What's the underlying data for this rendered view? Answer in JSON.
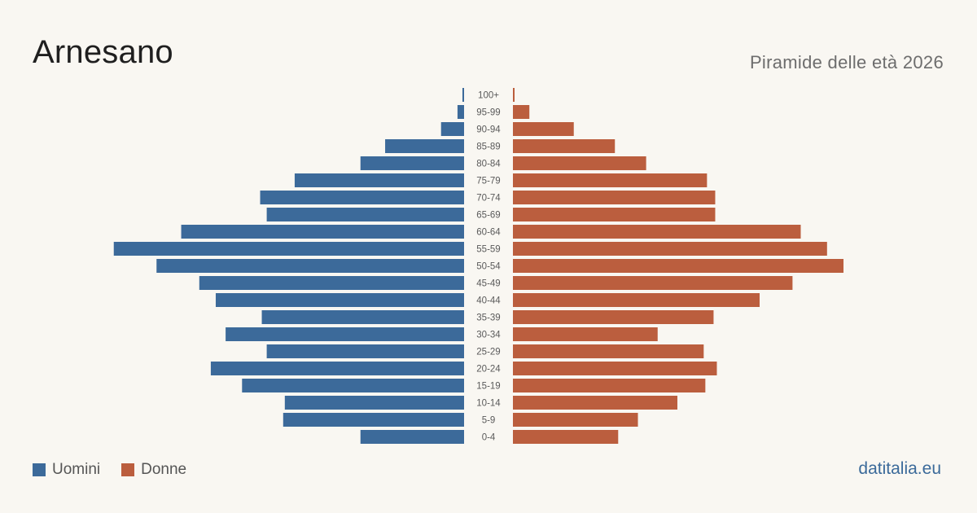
{
  "title": "Arnesano",
  "subtitle": "Piramide delle età 2026",
  "brand": "datitalia.eu",
  "colors": {
    "men": "#3c6a9a",
    "women": "#bb5e3e"
  },
  "legend": {
    "men_label": "Uomini",
    "women_label": "Donne"
  },
  "chart_data": {
    "type": "bar",
    "orientation": "horizontal-pyramid",
    "categories": [
      "100+",
      "95-99",
      "90-94",
      "85-89",
      "80-84",
      "75-79",
      "70-74",
      "65-69",
      "60-64",
      "55-59",
      "50-54",
      "45-49",
      "40-44",
      "35-39",
      "30-34",
      "25-29",
      "20-24",
      "15-19",
      "10-14",
      "5-9",
      "0-4"
    ],
    "series": [
      {
        "name": "Uomini",
        "values": [
          1,
          4,
          14,
          48,
          63,
          103,
          124,
          120,
          172,
          213,
          187,
          161,
          151,
          123,
          145,
          120,
          154,
          135,
          109,
          110,
          63
        ]
      },
      {
        "name": "Donne",
        "values": [
          1,
          10,
          37,
          62,
          81,
          118,
          123,
          123,
          175,
          191,
          201,
          170,
          150,
          122,
          88,
          116,
          124,
          117,
          100,
          76,
          64
        ]
      }
    ]
  }
}
